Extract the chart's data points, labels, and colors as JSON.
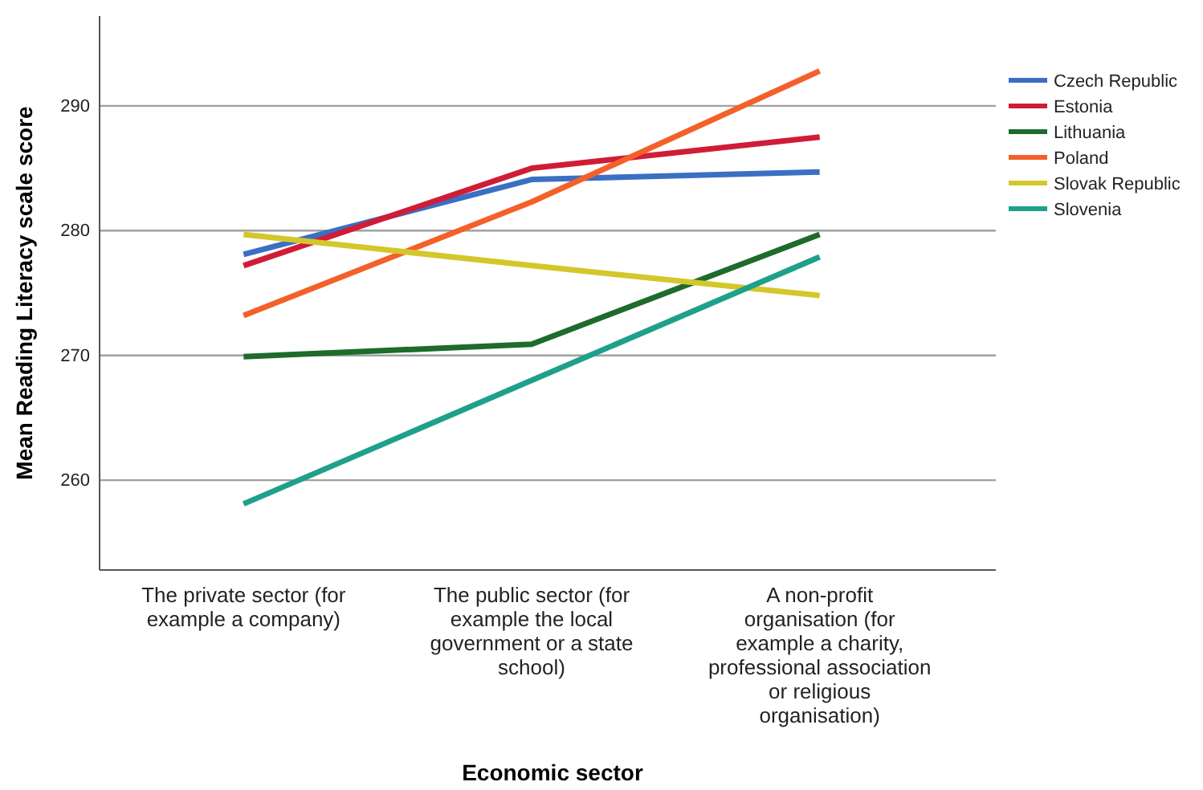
{
  "chart_data": {
    "type": "line",
    "xlabel": "Economic sector",
    "ylabel": "Mean Reading Literacy scale score",
    "categories": [
      "The private sector (for example a company)",
      "The public sector (for example the local government or a state school)",
      "A non-profit organisation (for example a charity, professional association or religious organisation)"
    ],
    "series": [
      {
        "name": "Czech Republic",
        "color": "#3a6fc4",
        "values": [
          278.1,
          284.1,
          284.7
        ]
      },
      {
        "name": "Estonia",
        "color": "#d01c36",
        "values": [
          277.2,
          285.0,
          287.5
        ]
      },
      {
        "name": "Lithuania",
        "color": "#1e6b2c",
        "values": [
          269.9,
          270.9,
          279.7
        ]
      },
      {
        "name": "Poland",
        "color": "#f4602a",
        "values": [
          273.2,
          282.3,
          292.8
        ]
      },
      {
        "name": "Slovak Republic",
        "color": "#d4c72a",
        "values": [
          279.7,
          277.2,
          274.8
        ]
      },
      {
        "name": "Slovenia",
        "color": "#1fa08a",
        "values": [
          258.1,
          268.0,
          277.9
        ]
      }
    ],
    "ylim": [
      252.8,
      297.2
    ],
    "yticks": [
      260,
      270,
      280,
      290
    ],
    "grid": "y",
    "legend": "right",
    "marker": "none",
    "line_style": "solid"
  }
}
